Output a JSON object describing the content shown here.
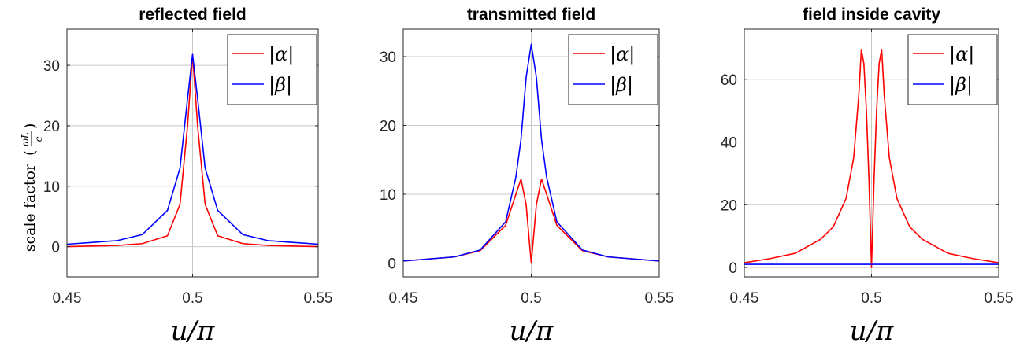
{
  "colors": {
    "alpha": "#ff0000",
    "beta": "#0000ff",
    "grid": "#c8c8c8",
    "axis": "#262626"
  },
  "ylabel": {
    "text": "scale factor",
    "frac_num": "ωL",
    "frac_den": "c"
  },
  "chart_data": [
    {
      "type": "line",
      "title": "reflected field",
      "xlabel": "u/π",
      "xlim": [
        0.45,
        0.55
      ],
      "ylim": [
        -5,
        36
      ],
      "xticks": [
        0.45,
        0.5,
        0.55
      ],
      "xtick_labels": [
        "0.45",
        "0.5",
        "0.55"
      ],
      "yticks": [
        0,
        10,
        20,
        30
      ],
      "ytick_labels": [
        "0",
        "10",
        "20",
        "30"
      ],
      "grid": true,
      "legend_position": "top-right",
      "series": [
        {
          "name": "|α|",
          "color": "#ff0000",
          "x": [
            0.45,
            0.47,
            0.48,
            0.49,
            0.495,
            0.498,
            0.5,
            0.502,
            0.505,
            0.51,
            0.52,
            0.53,
            0.55
          ],
          "y": [
            0.0,
            0.2,
            0.5,
            1.8,
            7.0,
            20.0,
            31.8,
            20.0,
            7.0,
            1.8,
            0.5,
            0.2,
            0.0
          ]
        },
        {
          "name": "|β|",
          "color": "#0000ff",
          "x": [
            0.45,
            0.47,
            0.48,
            0.49,
            0.495,
            0.498,
            0.5,
            0.502,
            0.505,
            0.51,
            0.52,
            0.53,
            0.55
          ],
          "y": [
            0.4,
            1.0,
            2.0,
            6.0,
            13.0,
            24.5,
            31.8,
            24.5,
            13.0,
            6.0,
            2.0,
            1.0,
            0.4
          ]
        }
      ]
    },
    {
      "type": "line",
      "title": "transmitted field",
      "xlabel": "u/π",
      "xlim": [
        0.45,
        0.55
      ],
      "ylim": [
        -2,
        34
      ],
      "xticks": [
        0.45,
        0.5,
        0.55
      ],
      "xtick_labels": [
        "0.45",
        "0.5",
        "0.55"
      ],
      "yticks": [
        0,
        10,
        20,
        30
      ],
      "ytick_labels": [
        "0",
        "10",
        "20",
        "30"
      ],
      "grid": true,
      "legend_position": "top-right",
      "series": [
        {
          "name": "|α|",
          "color": "#ff0000",
          "x": [
            0.45,
            0.47,
            0.48,
            0.49,
            0.494,
            0.496,
            0.498,
            0.5,
            0.502,
            0.504,
            0.506,
            0.51,
            0.52,
            0.53,
            0.55
          ],
          "y": [
            0.3,
            0.9,
            1.8,
            5.5,
            10.0,
            12.2,
            8.5,
            0.0,
            8.5,
            12.2,
            10.0,
            5.5,
            1.8,
            0.9,
            0.3
          ]
        },
        {
          "name": "|β|",
          "color": "#0000ff",
          "x": [
            0.45,
            0.47,
            0.48,
            0.49,
            0.494,
            0.496,
            0.498,
            0.5,
            0.502,
            0.504,
            0.506,
            0.51,
            0.52,
            0.53,
            0.55
          ],
          "y": [
            0.3,
            0.9,
            1.9,
            6.0,
            12.5,
            18.0,
            27.0,
            31.8,
            27.0,
            18.0,
            12.5,
            6.0,
            1.9,
            0.9,
            0.3
          ]
        }
      ]
    },
    {
      "type": "line",
      "title": "field inside cavity",
      "xlabel": "u/π",
      "xlim": [
        0.45,
        0.55
      ],
      "ylim": [
        -3,
        76
      ],
      "xticks": [
        0.45,
        0.5,
        0.55
      ],
      "xtick_labels": [
        "0.45",
        "0.5",
        "0.55"
      ],
      "yticks": [
        0,
        20,
        40,
        60
      ],
      "ytick_labels": [
        "0",
        "20",
        "40",
        "60"
      ],
      "grid": true,
      "legend_position": "top-right",
      "series": [
        {
          "name": "|α|",
          "color": "#ff0000",
          "x": [
            0.45,
            0.46,
            0.47,
            0.48,
            0.485,
            0.49,
            0.493,
            0.495,
            0.496,
            0.497,
            0.498,
            0.499,
            0.5,
            0.501,
            0.502,
            0.503,
            0.504,
            0.505,
            0.507,
            0.51,
            0.515,
            0.52,
            0.53,
            0.54,
            0.55
          ],
          "y": [
            1.5,
            2.8,
            4.5,
            9.0,
            13.0,
            22.0,
            35.0,
            55.0,
            69.5,
            65.0,
            50.0,
            28.0,
            0.0,
            28.0,
            50.0,
            65.0,
            69.5,
            55.0,
            35.0,
            22.0,
            13.0,
            9.0,
            4.5,
            2.8,
            1.5
          ]
        },
        {
          "name": "|β|",
          "color": "#0000ff",
          "x": [
            0.45,
            0.55
          ],
          "y": [
            1.0,
            1.0
          ]
        }
      ]
    }
  ]
}
